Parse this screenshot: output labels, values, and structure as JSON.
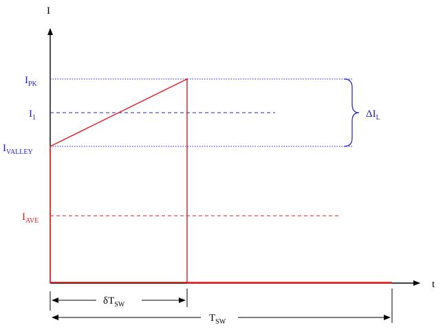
{
  "axes": {
    "y_label": "I",
    "x_label": "t"
  },
  "levels": {
    "peak": {
      "main": "I",
      "sub": "PK"
    },
    "i1": {
      "main": "I",
      "sub": "1"
    },
    "valley": {
      "main": "I",
      "sub": "VALLEY"
    },
    "average": {
      "main": "I",
      "sub": "AVE"
    }
  },
  "ripple": {
    "main": "ΔI",
    "sub": "L"
  },
  "dimensions": {
    "on_time": {
      "main": "δT",
      "sub": "SW"
    },
    "period": {
      "main": "T",
      "sub": "SW"
    }
  },
  "colors": {
    "axis": "#000000",
    "waveform": "#e8141c",
    "level_blue": "#1c1cc8",
    "average_red": "#e8141c"
  }
}
